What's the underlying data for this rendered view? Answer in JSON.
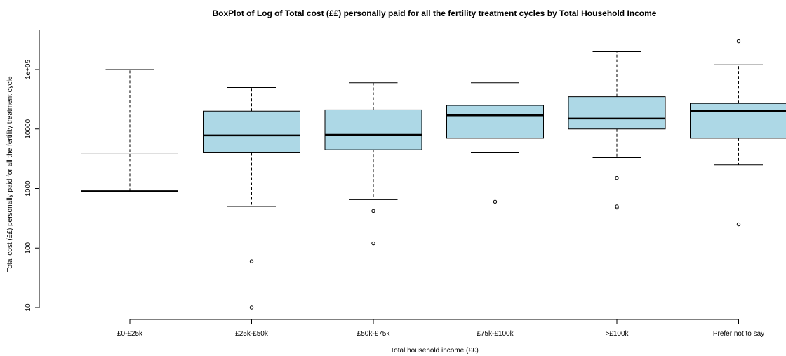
{
  "chart_data": {
    "type": "boxplot",
    "title": "BoxPlot of Log of Total cost (££) personally paid for all the fertility treatment cycles by Total Household Income",
    "xlabel": "Total household income (££)",
    "ylabel": "Total cost (££) personally paid for all the fertility treatment cycle",
    "y_scale": "log10",
    "ylim": [
      10,
      300000
    ],
    "y_ticks": [
      10,
      100,
      1000,
      10000,
      100000
    ],
    "y_tick_labels": [
      "10",
      "100",
      "1000",
      "10000",
      "1e+05"
    ],
    "categories": [
      "£0-£25k",
      "£25k-£50k",
      "£50k-£75k",
      "£75k-£100k",
      ">£100k",
      "Prefer not to say"
    ],
    "boxes": [
      {
        "category": "£0-£25k",
        "lower_whisker": 900,
        "q1": 900,
        "median": 900,
        "q3": 900,
        "upper_whisker": 100000,
        "outliers": []
      },
      {
        "category": "£25k-£50k",
        "lower_whisker": 500,
        "q1": 4000,
        "median": 7800,
        "q3": 20000,
        "upper_whisker": 50000,
        "outliers": [
          60,
          10
        ]
      },
      {
        "category": "£50k-£75k",
        "lower_whisker": 650,
        "q1": 4500,
        "median": 8000,
        "q3": 21000,
        "upper_whisker": 60000,
        "outliers": [
          420,
          120
        ]
      },
      {
        "category": "£75k-£100k",
        "lower_whisker": 4000,
        "q1": 7000,
        "median": 17000,
        "q3": 25000,
        "upper_whisker": 60000,
        "outliers": [
          600
        ]
      },
      {
        "category": ">£100k",
        "lower_whisker": 3300,
        "q1": 10000,
        "median": 15000,
        "q3": 35000,
        "upper_whisker": 200000,
        "outliers": [
          1500,
          500,
          480
        ]
      },
      {
        "category": "Prefer not to say",
        "lower_whisker": 2500,
        "q1": 7000,
        "median": 20000,
        "q3": 27000,
        "upper_whisker": 120000,
        "outliers": [
          300000,
          250
        ]
      }
    ],
    "box_color": "#add8e6",
    "grid": false,
    "legend": "none"
  }
}
